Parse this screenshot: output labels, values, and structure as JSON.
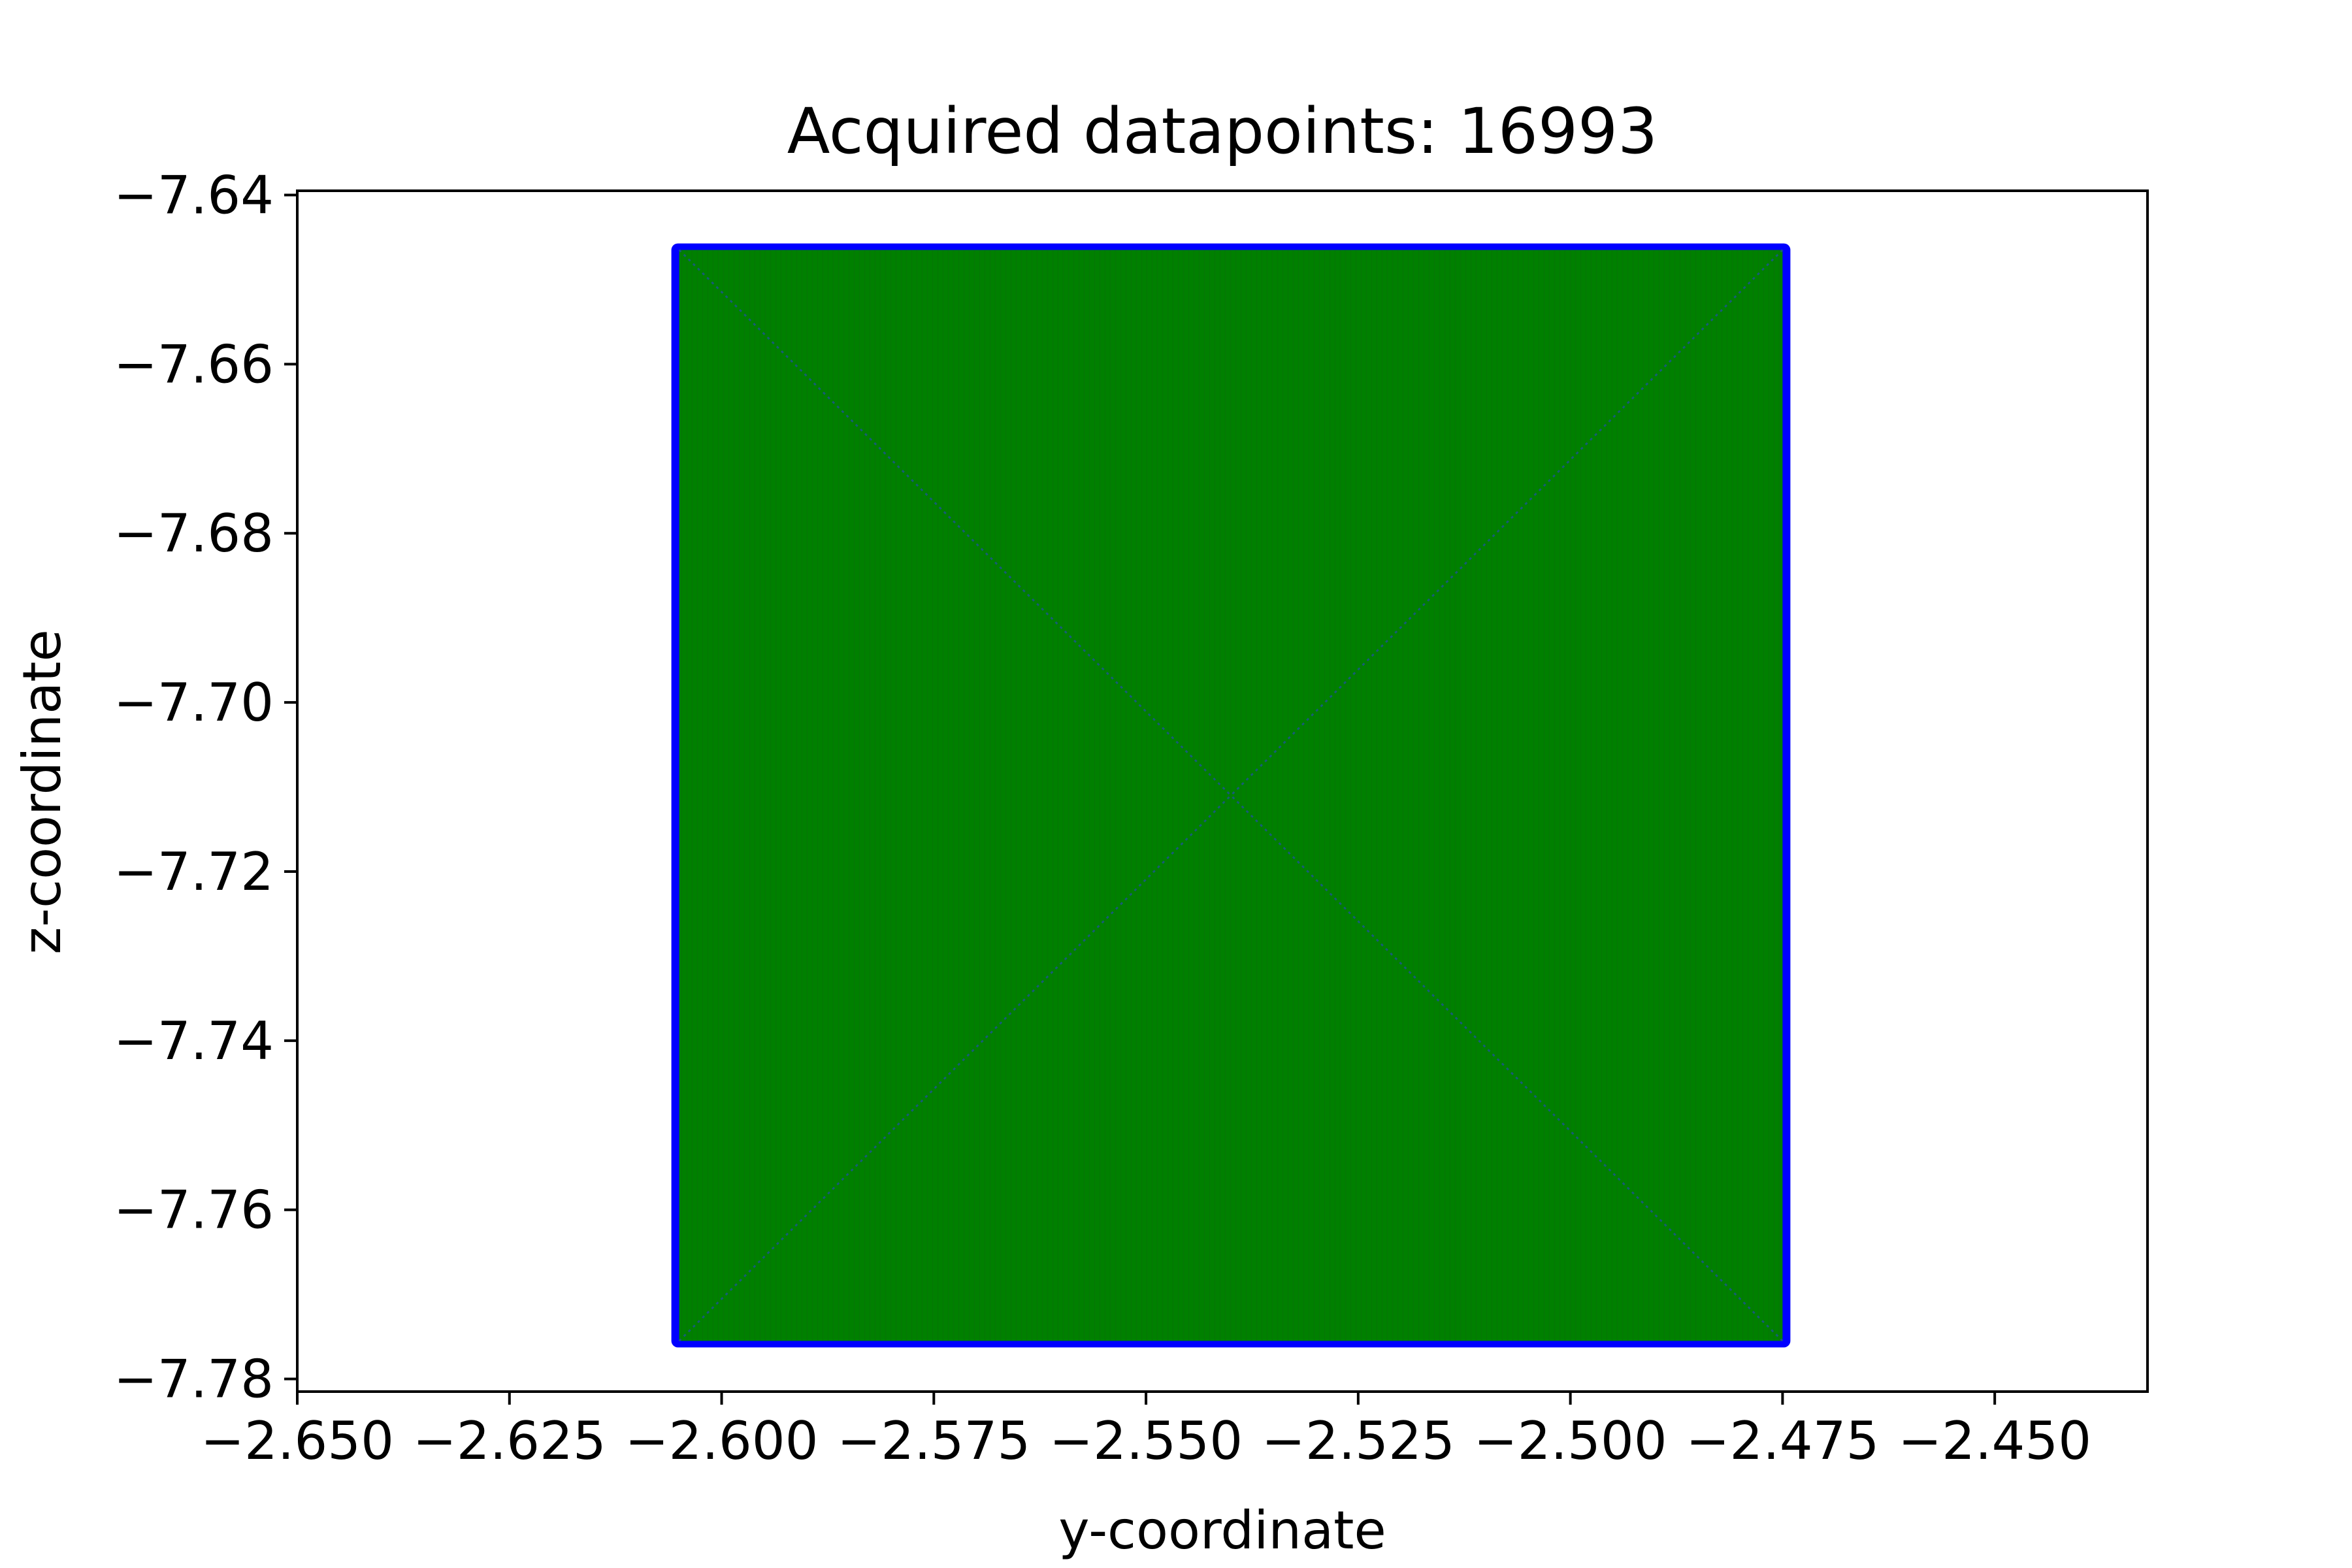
{
  "chart_data": {
    "type": "scatter",
    "title": "Acquired datapoints: 16993",
    "xlabel": "y-coordinate",
    "ylabel": "z-coordinate",
    "xlim": [
      -2.65,
      -2.432
    ],
    "ylim": [
      -7.7815,
      -7.6395
    ],
    "xticks": [
      -2.65,
      -2.625,
      -2.6,
      -2.575,
      -2.55,
      -2.525,
      -2.5,
      -2.475,
      -2.45
    ],
    "xtick_labels": [
      "−2.650",
      "−2.625",
      "−2.600",
      "−2.575",
      "−2.550",
      "−2.525",
      "−2.500",
      "−2.475",
      "−2.450"
    ],
    "yticks": [
      -7.64,
      -7.66,
      -7.68,
      -7.7,
      -7.72,
      -7.74,
      -7.76,
      -7.78
    ],
    "ytick_labels": [
      "−7.64",
      "−7.66",
      "−7.68",
      "−7.70",
      "−7.72",
      "−7.74",
      "−7.76",
      "−7.78"
    ],
    "grid": false,
    "series": [
      {
        "marker_color": "#0000ff",
        "fill_color": "#008000",
        "extent_x": [
          -2.605,
          -2.475
        ],
        "extent_y": [
          -7.7755,
          -7.6465
        ],
        "center": [
          -2.54,
          -7.711
        ],
        "point_count": 16993
      }
    ]
  }
}
